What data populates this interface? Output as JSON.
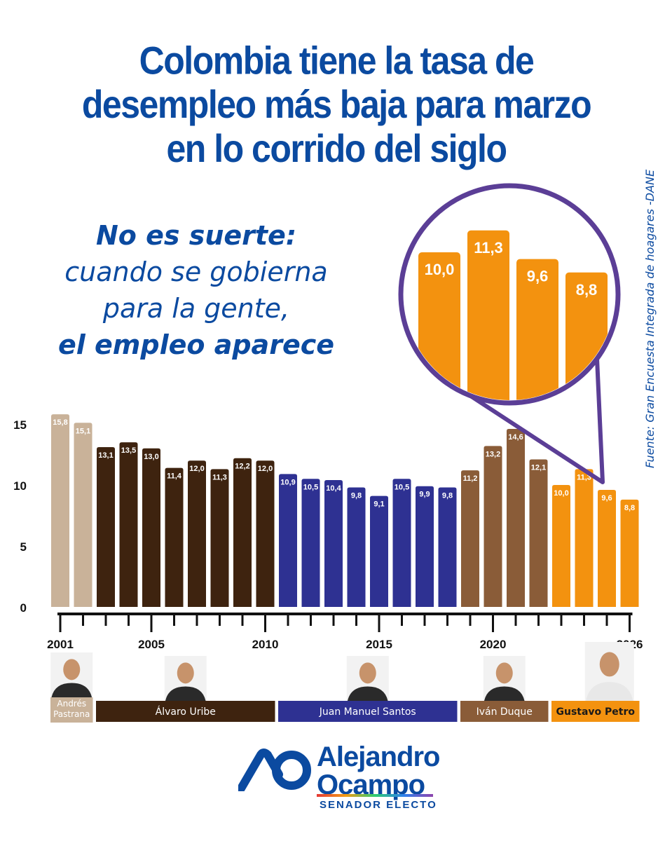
{
  "title_lines": [
    "Colombia tiene la tasa de",
    "desempleo más baja para marzo",
    "en lo corrido del siglo"
  ],
  "subtitle_lines": [
    "No es suerte:",
    "cuando se gobierna",
    "para la gente,",
    "el empleo aparece"
  ],
  "source": "Fuente: Gran Encuesta Integrada de hoagares -DANE",
  "chart_data": {
    "type": "bar",
    "categories": [
      2001,
      2002,
      2003,
      2004,
      2005,
      2006,
      2007,
      2008,
      2009,
      2010,
      2011,
      2012,
      2013,
      2014,
      2015,
      2016,
      2017,
      2018,
      2019,
      2020,
      2021,
      2022,
      2023,
      2024,
      2025,
      2026
    ],
    "values": [
      15.8,
      15.1,
      13.1,
      13.5,
      13.0,
      11.4,
      12.0,
      11.3,
      12.2,
      12.0,
      10.9,
      10.5,
      10.4,
      9.8,
      9.1,
      10.5,
      9.9,
      9.8,
      11.2,
      13.2,
      14.6,
      12.1,
      10.0,
      11.3,
      9.6,
      8.8
    ],
    "value_labels": [
      "15,8",
      "15,1",
      "13,1",
      "13,5",
      "13,0",
      "11,4",
      "12,0",
      "11,3",
      "12,2",
      "12,0",
      "10,9",
      "10,5",
      "10,4",
      "9,8",
      "9,1",
      "10,5",
      "9,9",
      "9,8",
      "11,2",
      "13,2",
      "14,6",
      "12,1",
      "10,0",
      "11,3",
      "9,6",
      "8,8"
    ],
    "ylim": [
      0,
      16
    ],
    "yticks": [
      0,
      5,
      10,
      15
    ],
    "xtick_labels": [
      "2001",
      "2005",
      "2010",
      "2015",
      "2020",
      "2026"
    ],
    "xtick_years": [
      2001,
      2005,
      2010,
      2015,
      2020,
      2026
    ],
    "groups": [
      {
        "name": "Andrés Pastrana",
        "lines": [
          "Andrés",
          "Pastrana"
        ],
        "start": 2001,
        "end": 2002,
        "color": "#c9b299"
      },
      {
        "name": "Álvaro Uribe",
        "lines": [
          "Álvaro Uribe"
        ],
        "start": 2003,
        "end": 2010,
        "color": "#3e230f"
      },
      {
        "name": "Juan Manuel Santos",
        "lines": [
          "Juan Manuel Santos"
        ],
        "start": 2011,
        "end": 2018,
        "color": "#2e3192"
      },
      {
        "name": "Iván Duque",
        "lines": [
          "Iván Duque"
        ],
        "start": 2019,
        "end": 2022,
        "color": "#8a5c38"
      },
      {
        "name": "Gustavo Petro",
        "lines": [
          "Gustavo Petro"
        ],
        "start": 2023,
        "end": 2026,
        "color": "#f3920f"
      }
    ],
    "zoom": {
      "years": [
        2023,
        2024,
        2025,
        2026
      ],
      "labels": [
        "10,0",
        "11,3",
        "9,6",
        "8,8"
      ],
      "values": [
        10.0,
        11.3,
        9.6,
        8.8
      ]
    }
  },
  "logo": {
    "line1": "Alejandro",
    "line2": "Ocampo",
    "tagline": "SENADOR ELECTO"
  },
  "colors": {
    "title": "#0b4aa0",
    "zoom_ring": "#5b3e96"
  }
}
